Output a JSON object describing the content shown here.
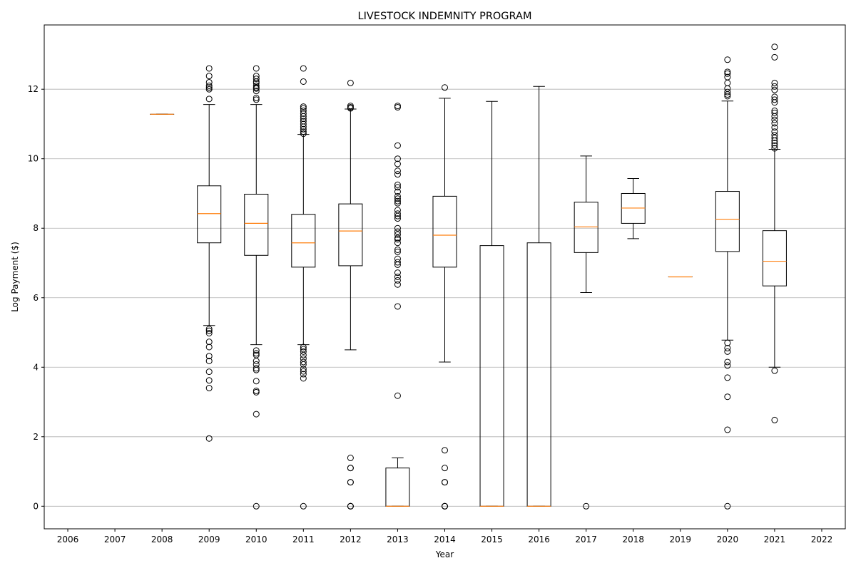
{
  "chart_data": {
    "type": "boxplot",
    "title": "LIVESTOCK INDEMNITY PROGRAM",
    "xlabel": "Year",
    "ylabel": "Log Payment ($)",
    "x_ticks": [
      "2006",
      "2007",
      "2008",
      "2009",
      "2010",
      "2011",
      "2012",
      "2013",
      "2014",
      "2015",
      "2016",
      "2017",
      "2018",
      "2019",
      "2020",
      "2021",
      "2022"
    ],
    "y_ticks": [
      0,
      2,
      4,
      6,
      8,
      10,
      12
    ],
    "ylim": [
      -0.65,
      13.85
    ],
    "grid": "horizontal",
    "colors": {
      "box": "#000000",
      "median": "#ff7f0e",
      "grid": "#b0b0b0"
    },
    "boxes": [
      {
        "year": "2008",
        "whislo": 11.28,
        "q1": 11.28,
        "med": 11.28,
        "q3": 11.28,
        "whishi": 11.28,
        "fliers": []
      },
      {
        "year": "2009",
        "whislo": 5.2,
        "q1": 7.58,
        "med": 8.42,
        "q3": 9.22,
        "whishi": 11.56,
        "fliers": [
          1.95,
          3.4,
          3.62,
          3.87,
          4.18,
          4.32,
          4.58,
          4.73,
          4.98,
          5.05,
          5.1,
          11.72,
          12.0,
          12.05,
          12.1,
          12.2,
          12.38,
          12.6
        ]
      },
      {
        "year": "2010",
        "whislo": 4.65,
        "q1": 7.22,
        "med": 8.14,
        "q3": 8.98,
        "whishi": 11.56,
        "fliers": [
          0.0,
          2.65,
          3.28,
          3.32,
          3.6,
          3.92,
          3.97,
          4.08,
          4.18,
          4.35,
          4.4,
          4.48,
          11.7,
          11.75,
          11.95,
          12.02,
          12.05,
          12.1,
          12.18,
          12.22,
          12.3,
          12.38,
          12.6
        ]
      },
      {
        "year": "2011",
        "whislo": 4.65,
        "q1": 6.88,
        "med": 7.58,
        "q3": 8.4,
        "whishi": 10.7,
        "fliers": [
          0.0,
          3.68,
          3.8,
          3.88,
          3.95,
          4.08,
          4.15,
          4.25,
          4.35,
          4.45,
          4.52,
          4.58,
          10.72,
          10.78,
          10.85,
          10.92,
          11.0,
          11.08,
          11.15,
          11.22,
          11.3,
          11.38,
          11.45,
          11.5,
          12.22,
          12.6
        ]
      },
      {
        "year": "2012",
        "whislo": 4.5,
        "q1": 6.92,
        "med": 7.92,
        "q3": 8.7,
        "whishi": 11.43,
        "fliers": [
          0.0,
          0.0,
          0.0,
          0.69,
          0.69,
          1.1,
          1.1,
          1.39,
          11.45,
          11.48,
          11.52,
          12.18
        ]
      },
      {
        "year": "2013",
        "whislo": 0.0,
        "q1": 0.0,
        "med": 0.0,
        "q3": 1.1,
        "whishi": 1.39,
        "fliers": [
          3.18,
          5.75,
          6.38,
          6.5,
          6.6,
          6.72,
          6.95,
          7.02,
          7.12,
          7.32,
          7.38,
          7.58,
          7.68,
          7.72,
          7.82,
          7.9,
          8.0,
          8.28,
          8.35,
          8.42,
          8.52,
          8.72,
          8.78,
          8.85,
          8.92,
          9.05,
          9.18,
          9.25,
          9.55,
          9.65,
          9.85,
          10.0,
          10.38,
          11.48,
          11.52
        ]
      },
      {
        "year": "2014",
        "whislo": 4.15,
        "q1": 6.88,
        "med": 7.8,
        "q3": 8.92,
        "whishi": 11.74,
        "fliers": [
          0.0,
          0.0,
          0.0,
          0.69,
          0.69,
          1.1,
          1.61,
          12.05
        ]
      },
      {
        "year": "2015",
        "whislo": 0.0,
        "q1": 0.0,
        "med": 0.0,
        "q3": 7.5,
        "whishi": 11.65,
        "fliers": []
      },
      {
        "year": "2016",
        "whislo": 0.0,
        "q1": 0.0,
        "med": 0.0,
        "q3": 7.58,
        "whishi": 12.08,
        "fliers": []
      },
      {
        "year": "2017",
        "whislo": 6.15,
        "q1": 7.3,
        "med": 8.04,
        "q3": 8.75,
        "whishi": 10.08,
        "fliers": [
          0.0
        ]
      },
      {
        "year": "2018",
        "whislo": 7.7,
        "q1": 8.14,
        "med": 8.58,
        "q3": 9.0,
        "whishi": 9.43,
        "fliers": []
      },
      {
        "year": "2019",
        "whislo": 6.6,
        "q1": 6.6,
        "med": 6.6,
        "q3": 6.6,
        "whishi": 6.6,
        "fliers": []
      },
      {
        "year": "2020",
        "whislo": 4.78,
        "q1": 7.33,
        "med": 8.26,
        "q3": 9.06,
        "whishi": 11.66,
        "fliers": [
          0.0,
          2.2,
          3.15,
          3.7,
          4.05,
          4.15,
          4.45,
          4.55,
          4.7,
          11.8,
          11.85,
          11.92,
          12.02,
          12.18,
          12.35,
          12.45,
          12.5,
          12.85
        ]
      },
      {
        "year": "2021",
        "whislo": 4.0,
        "q1": 6.34,
        "med": 7.05,
        "q3": 7.93,
        "whishi": 10.27,
        "fliers": [
          2.48,
          3.9,
          10.3,
          10.38,
          10.45,
          10.52,
          10.6,
          10.68,
          10.78,
          10.9,
          11.02,
          11.12,
          11.22,
          11.32,
          11.38,
          11.62,
          11.7,
          11.78,
          11.98,
          12.08,
          12.18,
          12.92,
          13.22
        ]
      }
    ]
  }
}
